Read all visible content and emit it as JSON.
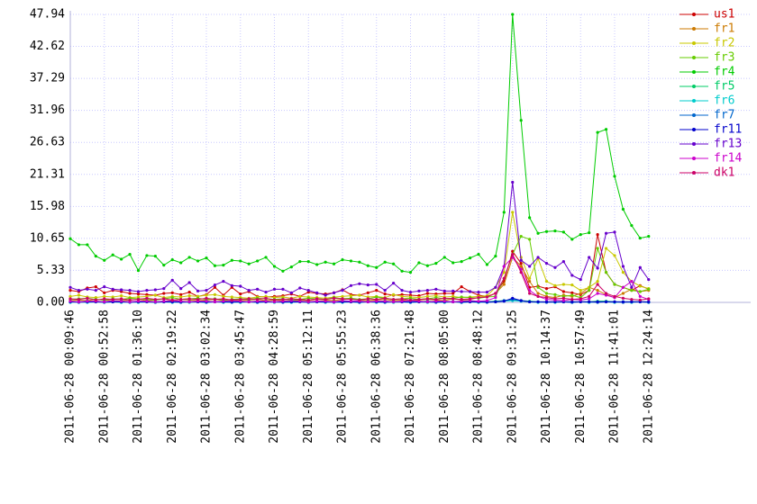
{
  "chart_data": {
    "type": "line",
    "categories": [
      "2011-06-28 00:09:46",
      null,
      null,
      null,
      "2011-06-28 00:52:58",
      null,
      null,
      null,
      "2011-06-28 01:36:10",
      null,
      null,
      null,
      "2011-06-28 02:19:22",
      null,
      null,
      null,
      "2011-06-28 03:02:34",
      null,
      null,
      null,
      "2011-06-28 03:45:47",
      null,
      null,
      null,
      "2011-06-28 04:28:59",
      null,
      null,
      null,
      "2011-06-28 05:12:11",
      null,
      null,
      null,
      "2011-06-28 05:55:23",
      null,
      null,
      null,
      "2011-06-28 06:38:36",
      null,
      null,
      null,
      "2011-06-28 07:21:48",
      null,
      null,
      null,
      "2011-06-28 08:05:00",
      null,
      null,
      null,
      "2011-06-28 08:48:12",
      null,
      null,
      null,
      "2011-06-28 09:31:25",
      null,
      null,
      null,
      "2011-06-28 10:14:37",
      null,
      null,
      null,
      "2011-06-28 10:57:49",
      null,
      null,
      null,
      "2011-06-28 11:41:01",
      null,
      null,
      null,
      "2011-06-28 12:24:14"
    ],
    "ylim": [
      0,
      47.94
    ],
    "yticks": [
      {
        "value": 0,
        "label": "0.00"
      },
      5.33,
      10.65,
      15.98,
      21.31,
      26.63,
      31.96,
      37.29,
      42.62,
      47.94
    ],
    "grid": true,
    "legend": "right",
    "series": [
      {
        "name": "us1",
        "color": "#cc0000",
        "values": [
          2.0,
          1.8,
          2.4,
          2.6,
          1.6,
          2.0,
          1.8,
          1.5,
          1.4,
          1.3,
          1.2,
          1.5,
          1.6,
          1.3,
          1.7,
          1.0,
          1.3,
          2.5,
          1.2,
          2.5,
          1.4,
          1.8,
          1.0,
          0.9,
          1.0,
          1.1,
          1.4,
          1.0,
          1.7,
          1.5,
          1.4,
          1.6,
          2.1,
          1.3,
          1.2,
          1.6,
          2.0,
          1.4,
          1.2,
          1.3,
          1.2,
          1.1,
          1.5,
          1.4,
          1.5,
          1.5,
          2.6,
          1.8,
          1.2,
          1.0,
          1.5,
          3.5,
          8.5,
          6.5,
          2.5,
          2.7,
          2.3,
          2.6,
          1.8,
          1.6,
          1.3,
          2.0,
          11.3,
          5.0,
          3.0,
          2.5,
          2.0,
          2.8,
          2.2
        ]
      },
      {
        "name": "fr1",
        "color": "#cc7a00",
        "values": [
          0.3,
          0.4,
          0.3,
          0.5,
          0.4,
          0.3,
          0.3,
          0.4,
          0.5,
          0.3,
          0.4,
          0.6,
          0.3,
          0.5,
          0.4,
          0.3,
          0.4,
          0.5,
          0.3,
          0.4,
          0.3,
          0.4,
          0.5,
          0.3,
          0.4,
          0.3,
          0.3,
          0.4,
          0.3,
          0.5,
          0.4,
          0.3,
          0.5,
          0.6,
          0.4,
          0.3,
          0.4,
          0.5,
          0.3,
          0.4,
          0.3,
          0.4,
          0.5,
          0.4,
          0.3,
          0.6,
          0.4,
          0.5,
          0.8,
          1.0,
          1.5,
          3.0,
          7.5,
          6.0,
          3.5,
          1.5,
          1.0,
          0.8,
          1.2,
          1.0,
          1.5,
          2.5,
          2.0,
          1.3,
          0.8,
          1.5,
          2.2,
          1.8,
          2.0
        ]
      },
      {
        "name": "fr2",
        "color": "#c8c800",
        "values": [
          1.0,
          1.2,
          0.9,
          0.8,
          1.0,
          0.9,
          1.1,
          0.8,
          0.9,
          1.0,
          1.2,
          0.8,
          1.0,
          0.9,
          1.1,
          1.0,
          1.2,
          1.3,
          1.0,
          0.9,
          0.8,
          0.7,
          0.9,
          1.0,
          0.8,
          0.9,
          0.7,
          1.0,
          0.9,
          0.8,
          0.7,
          0.9,
          1.0,
          1.1,
          1.2,
          0.9,
          1.0,
          0.8,
          1.3,
          1.0,
          0.9,
          0.8,
          1.0,
          1.1,
          0.9,
          1.0,
          0.8,
          0.9,
          1.0,
          1.1,
          2.5,
          5.0,
          15.0,
          7.5,
          4.0,
          7.3,
          3.5,
          2.8,
          3.0,
          2.9,
          2.0,
          2.5,
          3.5,
          9.0,
          7.8,
          5.0,
          3.5,
          2.7,
          2.3
        ]
      },
      {
        "name": "fr3",
        "color": "#66cc00",
        "values": [
          0.5,
          0.6,
          0.7,
          0.5,
          0.4,
          0.6,
          0.5,
          0.7,
          0.6,
          0.5,
          0.4,
          0.6,
          0.8,
          0.5,
          0.6,
          0.7,
          0.5,
          0.6,
          0.4,
          0.5,
          0.6,
          0.5,
          0.7,
          0.6,
          0.5,
          0.6,
          0.4,
          0.5,
          0.7,
          0.6,
          0.5,
          0.8,
          0.6,
          0.7,
          0.5,
          0.6,
          0.9,
          0.7,
          0.5,
          0.6,
          0.7,
          0.5,
          0.6,
          0.8,
          0.6,
          0.7,
          0.9,
          0.8,
          0.7,
          0.9,
          1.0,
          4.0,
          8.0,
          11.0,
          10.5,
          2.5,
          1.5,
          1.3,
          1.0,
          1.2,
          0.8,
          2.0,
          9.0,
          5.0,
          3.0,
          2.5,
          2.0,
          1.8,
          2.2
        ]
      },
      {
        "name": "fr4",
        "color": "#00cc00",
        "values": [
          10.6,
          9.6,
          9.6,
          7.7,
          7.0,
          7.9,
          7.2,
          8.0,
          5.3,
          7.8,
          7.7,
          6.2,
          7.1,
          6.6,
          7.5,
          6.9,
          7.4,
          6.1,
          6.2,
          7.0,
          6.9,
          6.4,
          6.9,
          7.5,
          6.0,
          5.2,
          5.9,
          6.8,
          6.8,
          6.3,
          6.7,
          6.4,
          7.1,
          6.9,
          6.7,
          6.1,
          5.8,
          6.7,
          6.4,
          5.2,
          5.0,
          6.6,
          6.1,
          6.5,
          7.5,
          6.6,
          6.8,
          7.4,
          8.0,
          6.3,
          7.7,
          15.0,
          47.94,
          30.3,
          14.1,
          11.5,
          11.8,
          11.9,
          11.7,
          10.5,
          11.3,
          11.6,
          28.3,
          28.8,
          21.0,
          15.5,
          12.8,
          10.7,
          11.0
        ]
      },
      {
        "name": "fr5",
        "color": "#00cc66",
        "values": [
          0.1,
          0.1,
          0.2,
          0.1,
          0.1,
          0.1,
          0.2,
          0.1,
          0.1,
          0.1,
          0.1,
          0.2,
          0.1,
          0.1,
          0.1,
          0.1,
          0.2,
          0.1,
          0.1,
          0.1,
          0.1,
          0.1,
          0.2,
          0.1,
          0.1,
          0.1,
          0.1,
          0.2,
          0.1,
          0.1,
          0.1,
          0.1,
          0.2,
          0.1,
          0.1,
          0.1,
          0.1,
          0.2,
          0.1,
          0.1,
          0.1,
          0.1,
          0.2,
          0.1,
          0.1,
          0.1,
          0.1,
          0.2,
          0.1,
          0.1,
          0.2,
          0.3,
          0.4,
          0.3,
          0.2,
          0.1,
          0.1,
          0.1,
          0.1,
          0.1,
          0.1,
          0.1,
          0.2,
          0.2,
          0.1,
          0.1,
          0.1,
          0.1,
          0.1
        ]
      },
      {
        "name": "fr6",
        "color": "#00cccc",
        "values": [
          0.0,
          0.1,
          0.0,
          0.1,
          0.0,
          0.1,
          0.0,
          0.1,
          0.0,
          0.1,
          0.0,
          0.1,
          0.0,
          0.1,
          0.0,
          0.1,
          0.0,
          0.1,
          0.0,
          0.1,
          0.0,
          0.1,
          0.0,
          0.1,
          0.0,
          0.1,
          0.0,
          0.1,
          0.0,
          0.1,
          0.0,
          0.1,
          0.0,
          0.1,
          0.0,
          0.1,
          0.0,
          0.1,
          0.0,
          0.1,
          0.0,
          0.1,
          0.0,
          0.1,
          0.0,
          0.1,
          0.0,
          0.1,
          0.0,
          0.1,
          0.1,
          0.2,
          0.3,
          0.2,
          0.1,
          0.0,
          0.1,
          0.0,
          0.1,
          0.0,
          0.1,
          0.0,
          0.1,
          0.1,
          0.0,
          0.1,
          0.0,
          0.1,
          0.0
        ]
      },
      {
        "name": "fr7",
        "color": "#0066cc",
        "values": [
          0.1,
          0.0,
          0.1,
          0.1,
          0.0,
          0.1,
          0.1,
          0.0,
          0.1,
          0.1,
          0.0,
          0.1,
          0.1,
          0.0,
          0.1,
          0.1,
          0.0,
          0.1,
          0.1,
          0.0,
          0.1,
          0.1,
          0.0,
          0.1,
          0.1,
          0.0,
          0.1,
          0.1,
          0.0,
          0.1,
          0.1,
          0.0,
          0.1,
          0.1,
          0.0,
          0.1,
          0.1,
          0.0,
          0.1,
          0.1,
          0.0,
          0.1,
          0.1,
          0.0,
          0.1,
          0.1,
          0.0,
          0.1,
          0.1,
          0.0,
          0.1,
          0.3,
          0.5,
          0.3,
          0.1,
          0.1,
          0.0,
          0.1,
          0.1,
          0.0,
          0.1,
          0.1,
          0.0,
          0.1,
          0.1,
          0.0,
          0.1,
          0.1,
          0.0
        ]
      },
      {
        "name": "fr11",
        "color": "#0000cc",
        "values": [
          0.1,
          0.1,
          0.1,
          0.1,
          0.1,
          0.1,
          0.1,
          0.1,
          0.1,
          0.1,
          0.1,
          0.1,
          0.1,
          0.1,
          0.1,
          0.1,
          0.1,
          0.1,
          0.1,
          0.1,
          0.1,
          0.1,
          0.1,
          0.1,
          0.1,
          0.1,
          0.1,
          0.1,
          0.1,
          0.1,
          0.1,
          0.1,
          0.1,
          0.1,
          0.1,
          0.1,
          0.1,
          0.1,
          0.1,
          0.1,
          0.1,
          0.1,
          0.1,
          0.1,
          0.1,
          0.1,
          0.1,
          0.1,
          0.1,
          0.1,
          0.1,
          0.2,
          0.7,
          0.3,
          0.1,
          0.1,
          0.1,
          0.1,
          0.1,
          0.1,
          0.1,
          0.1,
          0.1,
          0.1,
          0.1,
          0.1,
          0.1,
          0.1,
          0.1
        ]
      },
      {
        "name": "fr13",
        "color": "#6600cc",
        "values": [
          2.5,
          2.0,
          2.2,
          2.0,
          2.6,
          2.2,
          2.1,
          2.0,
          1.8,
          2.0,
          2.1,
          2.3,
          3.7,
          2.3,
          3.3,
          1.9,
          2.0,
          2.9,
          3.5,
          2.8,
          2.7,
          2.0,
          2.2,
          1.7,
          2.2,
          2.2,
          1.6,
          2.4,
          2.0,
          1.6,
          1.2,
          1.6,
          2.0,
          2.8,
          3.1,
          2.9,
          3.0,
          2.0,
          3.2,
          2.0,
          1.7,
          1.9,
          2.0,
          2.2,
          1.9,
          1.9,
          1.8,
          1.8,
          1.7,
          1.7,
          2.5,
          6.0,
          20.0,
          7.0,
          6.0,
          7.5,
          6.5,
          5.8,
          6.8,
          4.5,
          3.8,
          7.5,
          5.7,
          11.5,
          11.7,
          6.0,
          2.5,
          5.8,
          3.8
        ]
      },
      {
        "name": "fr14",
        "color": "#cc00cc",
        "values": [
          0.2,
          0.1,
          0.2,
          0.2,
          0.1,
          0.3,
          0.2,
          0.1,
          0.2,
          0.2,
          0.1,
          0.2,
          0.3,
          0.2,
          0.1,
          0.2,
          0.2,
          0.1,
          0.2,
          0.3,
          0.2,
          0.1,
          0.2,
          0.2,
          0.1,
          0.2,
          0.3,
          0.2,
          0.1,
          0.2,
          0.2,
          0.1,
          0.3,
          0.2,
          0.2,
          0.1,
          0.2,
          0.2,
          0.1,
          0.2,
          0.3,
          0.2,
          0.1,
          0.2,
          0.2,
          0.1,
          0.2,
          0.3,
          0.2,
          0.3,
          0.8,
          6.0,
          7.5,
          5.5,
          2.0,
          1.0,
          0.5,
          0.4,
          0.3,
          0.5,
          0.4,
          0.6,
          1.5,
          1.2,
          0.8,
          2.5,
          3.5,
          1.0,
          0.5
        ]
      },
      {
        "name": "dk1",
        "color": "#cc0066",
        "values": [
          0.6,
          0.5,
          0.7,
          0.4,
          0.6,
          0.5,
          0.6,
          0.4,
          0.5,
          0.7,
          0.5,
          0.6,
          0.4,
          0.5,
          0.6,
          0.5,
          0.7,
          0.5,
          0.6,
          0.4,
          0.5,
          0.6,
          0.5,
          0.7,
          0.4,
          0.5,
          0.6,
          0.5,
          0.4,
          0.6,
          0.5,
          0.7,
          0.6,
          0.5,
          0.4,
          0.6,
          0.5,
          0.7,
          0.5,
          0.6,
          0.4,
          0.5,
          0.6,
          0.5,
          0.7,
          0.6,
          0.5,
          0.6,
          0.8,
          0.9,
          1.5,
          4.0,
          8.0,
          5.0,
          1.5,
          1.0,
          0.8,
          0.6,
          0.7,
          0.5,
          0.6,
          1.0,
          3.0,
          1.5,
          1.0,
          0.7,
          0.5,
          0.4,
          0.6
        ]
      }
    ]
  }
}
